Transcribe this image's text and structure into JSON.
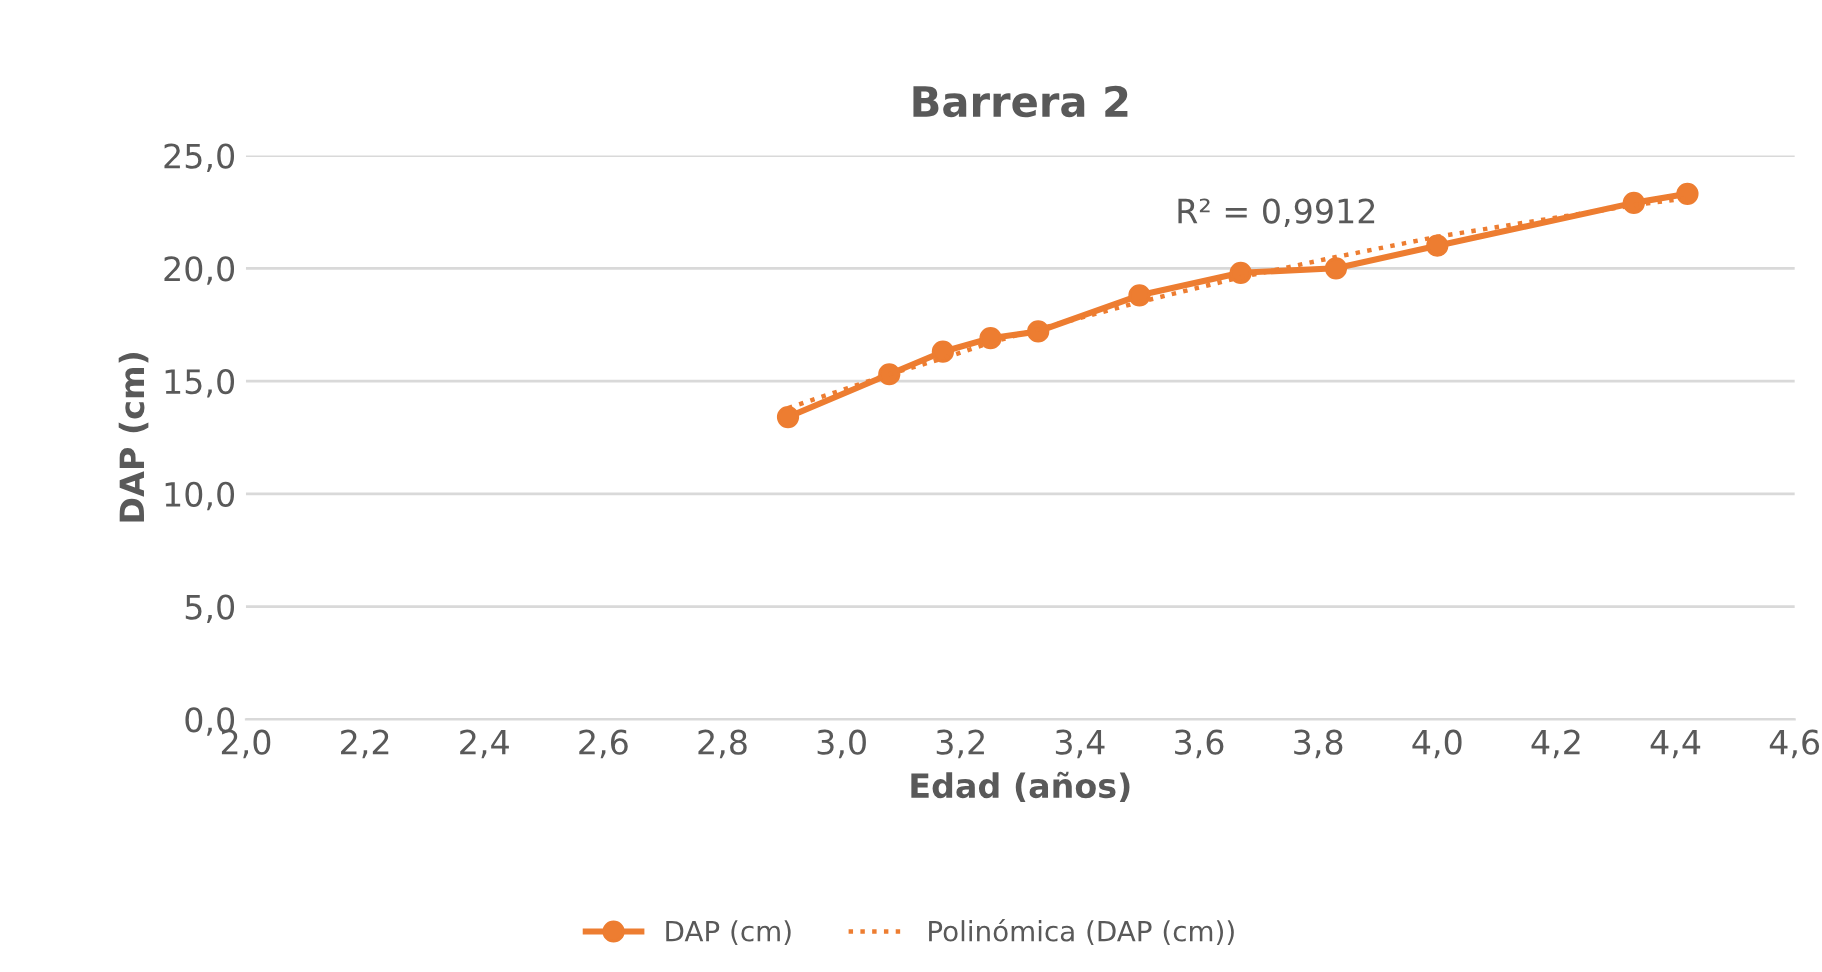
{
  "chart_data": {
    "type": "line",
    "title": "Barrera 2",
    "xlabel": "Edad (años)",
    "ylabel": "DAP (cm)",
    "x": [
      2.91,
      3.08,
      3.17,
      3.25,
      3.33,
      3.5,
      3.67,
      3.83,
      4.0,
      4.33,
      4.42
    ],
    "series": [
      {
        "name": "DAP (cm)",
        "color": "#ed7d31",
        "marker": "circle",
        "line_style": "solid",
        "values": [
          13.4,
          15.3,
          16.3,
          16.9,
          17.2,
          18.8,
          19.8,
          20.0,
          21.0,
          22.9,
          23.3
        ]
      },
      {
        "name": "Polinómica (DAP (cm))",
        "color": "#ed7d31",
        "marker": "none",
        "line_style": "dotted",
        "values": [
          13.8,
          15.3,
          16.0,
          16.7,
          17.3,
          18.5,
          19.6,
          20.5,
          21.4,
          22.8,
          23.1
        ]
      }
    ],
    "annotations": [
      "R² = 0,9912"
    ],
    "xlim": [
      2.0,
      4.6
    ],
    "xticks": [
      {
        "value": 2.0,
        "label": "2,0"
      },
      {
        "value": 2.2,
        "label": "2,2"
      },
      {
        "value": 2.4,
        "label": "2,4"
      },
      {
        "value": 2.6,
        "label": "2,6"
      },
      {
        "value": 2.8,
        "label": "2,8"
      },
      {
        "value": 3.0,
        "label": "3,0"
      },
      {
        "value": 3.2,
        "label": "3,2"
      },
      {
        "value": 3.4,
        "label": "3,4"
      },
      {
        "value": 3.6,
        "label": "3,6"
      },
      {
        "value": 3.8,
        "label": "3,8"
      },
      {
        "value": 4.0,
        "label": "4,0"
      },
      {
        "value": 4.2,
        "label": "4,2"
      },
      {
        "value": 4.4,
        "label": "4,4"
      },
      {
        "value": 4.6,
        "label": "4,6"
      }
    ],
    "ylim": [
      0,
      25
    ],
    "yticks": [
      {
        "value": 0,
        "label": "0,0"
      },
      {
        "value": 5,
        "label": "5,0"
      },
      {
        "value": 10,
        "label": "10,0"
      },
      {
        "value": 15,
        "label": "15,0"
      },
      {
        "value": 20,
        "label": "20,0"
      },
      {
        "value": 25,
        "label": "25,0"
      }
    ],
    "grid": "y",
    "legend": "bottom"
  }
}
